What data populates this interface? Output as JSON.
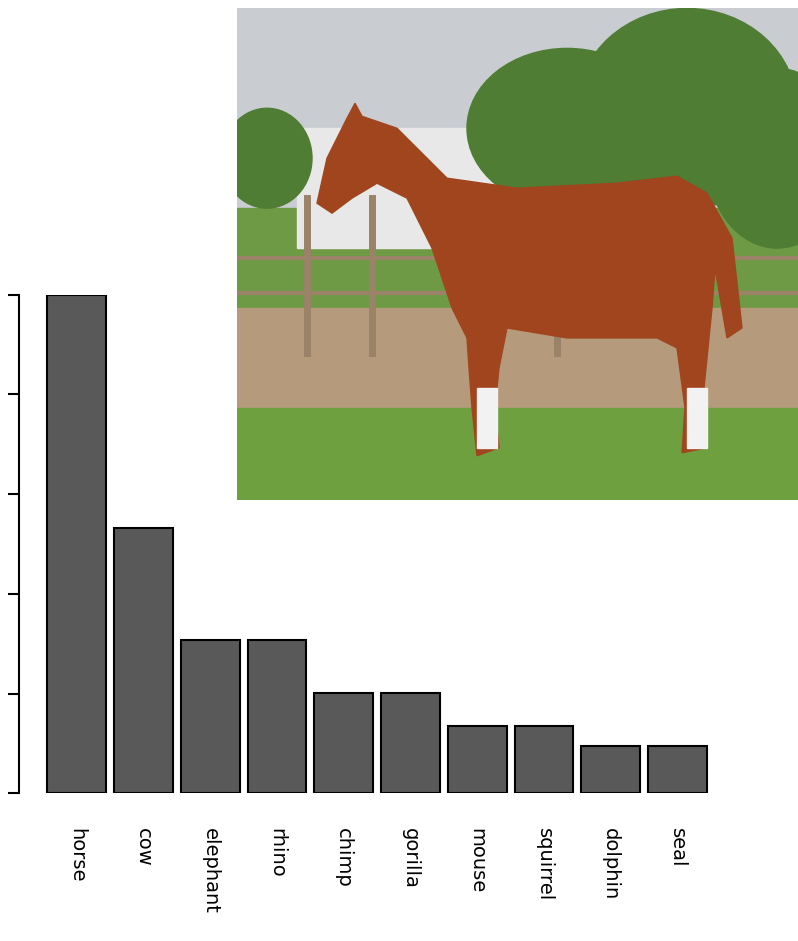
{
  "chart_data": {
    "type": "bar",
    "categories": [
      "horse",
      "cow",
      "elephant",
      "rhino",
      "chimp",
      "gorilla",
      "mouse",
      "squirrel",
      "dolphin",
      "seal"
    ],
    "values": [
      5.0,
      2.66,
      1.54,
      1.54,
      1.01,
      1.01,
      0.67,
      0.67,
      0.47,
      0.47
    ],
    "color": "#595959",
    "ylim": [
      0,
      5
    ],
    "yticks": [
      0,
      1,
      2,
      3,
      4,
      5
    ],
    "tick_labels": "x"
  }
}
